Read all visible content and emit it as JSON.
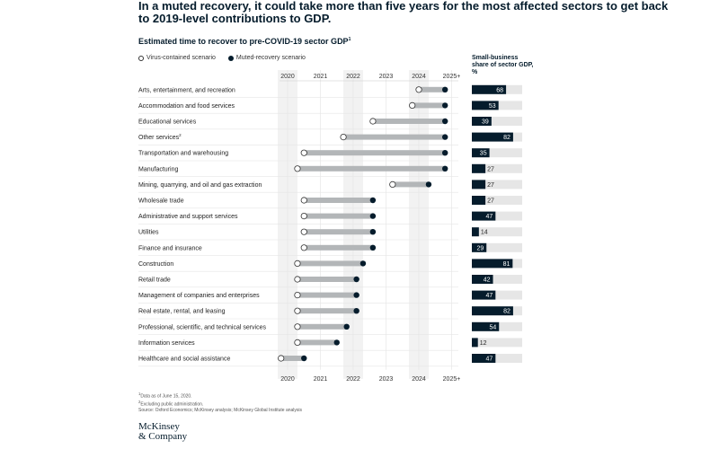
{
  "title": "In a muted recovery, it could take more than five years for the most affected sectors to get back to 2019-level contributions to GDP.",
  "subtitle": "Estimated time to recover to pre-COVID-19 sector GDP",
  "subtitle_sup": "1",
  "legend": {
    "virus_contained": "Virus-contained scenario",
    "muted_recovery": "Muted-recovery scenario"
  },
  "side_header": "Small-business share of sector GDP, %",
  "footnotes": {
    "note1": "Data as of June 15, 2020.",
    "note2": "Excluding public administration.",
    "source": "Source: Oxford Economics; McKinsey analysis; McKinsey Global Institute analysis"
  },
  "logo": {
    "line1": "McKinsey",
    "line2": "& Company"
  },
  "colors": {
    "navy": "#051c2c",
    "bar_gray": "#b3b6b8",
    "track_gray": "#e6e6e6",
    "band_gray": "#f2f2f2"
  },
  "chart_data": {
    "type": "dumbbell",
    "x_ticks": [
      "2020",
      "2021",
      "2022",
      "2023",
      "2024",
      "2025+"
    ],
    "xlim": [
      2020.0,
      2025.3
    ],
    "rows": [
      {
        "sector": "Arts, entertainment, and recreation",
        "sup": "",
        "virus_contained": 2024.0,
        "muted_recovery": 2024.8,
        "small_business_share": 68
      },
      {
        "sector": "Accommodation and food services",
        "sup": "",
        "virus_contained": 2023.8,
        "muted_recovery": 2024.8,
        "small_business_share": 53
      },
      {
        "sector": "Educational services",
        "sup": "",
        "virus_contained": 2022.6,
        "muted_recovery": 2024.8,
        "small_business_share": 39
      },
      {
        "sector": "Other services",
        "sup": "2",
        "virus_contained": 2021.7,
        "muted_recovery": 2024.8,
        "small_business_share": 82
      },
      {
        "sector": "Transportation and warehousing",
        "sup": "",
        "virus_contained": 2020.5,
        "muted_recovery": 2024.8,
        "small_business_share": 35
      },
      {
        "sector": "Manufacturing",
        "sup": "",
        "virus_contained": 2020.3,
        "muted_recovery": 2024.8,
        "small_business_share": 27
      },
      {
        "sector": "Mining, quarrying, and oil and gas extraction",
        "sup": "",
        "virus_contained": 2023.2,
        "muted_recovery": 2024.3,
        "small_business_share": 27
      },
      {
        "sector": "Wholesale trade",
        "sup": "",
        "virus_contained": 2020.5,
        "muted_recovery": 2022.6,
        "small_business_share": 27
      },
      {
        "sector": "Administrative and support services",
        "sup": "",
        "virus_contained": 2020.5,
        "muted_recovery": 2022.6,
        "small_business_share": 47
      },
      {
        "sector": "Utilities",
        "sup": "",
        "virus_contained": 2020.5,
        "muted_recovery": 2022.6,
        "small_business_share": 14
      },
      {
        "sector": "Finance and insurance",
        "sup": "",
        "virus_contained": 2020.5,
        "muted_recovery": 2022.6,
        "small_business_share": 29
      },
      {
        "sector": "Construction",
        "sup": "",
        "virus_contained": 2020.3,
        "muted_recovery": 2022.3,
        "small_business_share": 81
      },
      {
        "sector": "Retail trade",
        "sup": "",
        "virus_contained": 2020.3,
        "muted_recovery": 2022.1,
        "small_business_share": 42
      },
      {
        "sector": "Management of companies and enterprises",
        "sup": "",
        "virus_contained": 2020.3,
        "muted_recovery": 2022.1,
        "small_business_share": 47
      },
      {
        "sector": "Real estate, rental, and leasing",
        "sup": "",
        "virus_contained": 2020.3,
        "muted_recovery": 2022.1,
        "small_business_share": 82
      },
      {
        "sector": "Professional, scientific, and technical services",
        "sup": "",
        "virus_contained": 2020.3,
        "muted_recovery": 2021.8,
        "small_business_share": 54
      },
      {
        "sector": "Information services",
        "sup": "",
        "virus_contained": 2020.3,
        "muted_recovery": 2021.5,
        "small_business_share": 12
      },
      {
        "sector": "Healthcare and social assistance",
        "sup": "",
        "virus_contained": 2019.8,
        "muted_recovery": 2020.5,
        "small_business_share": 47
      }
    ]
  }
}
